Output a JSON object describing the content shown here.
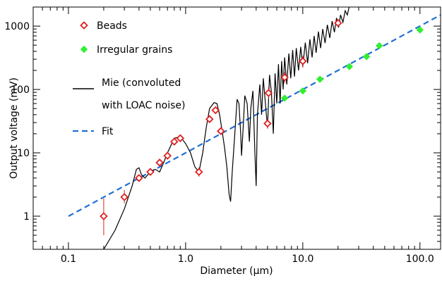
{
  "chart_data": {
    "type": "scatter",
    "title": "",
    "xlabel": "Diameter (μm)",
    "ylabel": "Output voltage (mV)",
    "xscale": "log",
    "yscale": "log",
    "xlim": [
      0.05,
      150
    ],
    "ylim": [
      0.3,
      2000
    ],
    "xticks": [
      {
        "value": 0.1,
        "label": "0.1"
      },
      {
        "value": 1,
        "label": "1.0"
      },
      {
        "value": 10,
        "label": "10.0"
      },
      {
        "value": 100,
        "label": "100.0"
      }
    ],
    "yticks": [
      {
        "value": 1,
        "label": "1"
      },
      {
        "value": 10,
        "label": "10"
      },
      {
        "value": 100,
        "label": "100"
      },
      {
        "value": 1000,
        "label": "1000"
      }
    ],
    "legend_position": "top-left",
    "legend": [
      {
        "label": "Beads",
        "kind": "marker",
        "color": "#e02020"
      },
      {
        "label": "Irregular grains",
        "kind": "marker",
        "color": "#33ee33"
      },
      {
        "label": "Mie (convoluted",
        "label2": "with LOAC noise)",
        "kind": "line",
        "color": "#000000"
      },
      {
        "label": "Fit",
        "kind": "dashed",
        "color": "#1f6fd6"
      }
    ],
    "series": [
      {
        "name": "Beads",
        "marker": "diamond-open",
        "color": "#e02020",
        "points": [
          {
            "x": 0.2,
            "y": 1.0,
            "err": [
              0.5,
              1.9
            ]
          },
          {
            "x": 0.3,
            "y": 2.0,
            "err": [
              1.6,
              2.6
            ]
          },
          {
            "x": 0.4,
            "y": 4.0,
            "err": [
              3.5,
              4.5
            ]
          },
          {
            "x": 0.5,
            "y": 5.0
          },
          {
            "x": 0.6,
            "y": 7.0
          },
          {
            "x": 0.7,
            "y": 9.0
          },
          {
            "x": 0.8,
            "y": 15.0
          },
          {
            "x": 0.9,
            "y": 17.0
          },
          {
            "x": 1.3,
            "y": 5.0,
            "err": [
              4.2,
              5.9
            ]
          },
          {
            "x": 1.6,
            "y": 34.0
          },
          {
            "x": 1.8,
            "y": 47.0
          },
          {
            "x": 2.0,
            "y": 22.0
          },
          {
            "x": 5.0,
            "y": 29.0,
            "err": [
              24,
              35
            ]
          },
          {
            "x": 5.1,
            "y": 88.0,
            "err": [
              70,
              110
            ]
          },
          {
            "x": 7.0,
            "y": 155.0,
            "err": [
              125,
              190
            ]
          },
          {
            "x": 10.0,
            "y": 280.0,
            "err": [
              220,
              340
            ]
          },
          {
            "x": 20.0,
            "y": 1120.0
          }
        ]
      },
      {
        "name": "Irregular grains",
        "marker": "diamond-filled",
        "color": "#33ee33",
        "points": [
          {
            "x": 7.0,
            "y": 73.0
          },
          {
            "x": 10.0,
            "y": 95.0
          },
          {
            "x": 14.0,
            "y": 145.0
          },
          {
            "x": 25.0,
            "y": 230.0
          },
          {
            "x": 35.0,
            "y": 330.0
          },
          {
            "x": 45.0,
            "y": 490.0
          },
          {
            "x": 100.0,
            "y": 870.0
          }
        ]
      },
      {
        "name": "Fit",
        "kind": "line",
        "style": "dashed",
        "color": "#1f6fd6",
        "points": [
          {
            "x": 0.1,
            "y": 1.0
          },
          {
            "x": 150,
            "y": 1500
          }
        ]
      },
      {
        "name": "Mie (convoluted with LOAC noise)",
        "kind": "line",
        "style": "solid",
        "color": "#000000",
        "points": [
          {
            "x": 0.2,
            "y": 0.3
          },
          {
            "x": 0.25,
            "y": 0.6
          },
          {
            "x": 0.3,
            "y": 1.3
          },
          {
            "x": 0.35,
            "y": 3.0
          },
          {
            "x": 0.38,
            "y": 5.5
          },
          {
            "x": 0.4,
            "y": 5.8
          },
          {
            "x": 0.42,
            "y": 4.5
          },
          {
            "x": 0.45,
            "y": 4.0
          },
          {
            "x": 0.5,
            "y": 5.0
          },
          {
            "x": 0.55,
            "y": 5.5
          },
          {
            "x": 0.6,
            "y": 5.0
          },
          {
            "x": 0.65,
            "y": 7.0
          },
          {
            "x": 0.7,
            "y": 10.0
          },
          {
            "x": 0.8,
            "y": 17.0
          },
          {
            "x": 0.9,
            "y": 18.0
          },
          {
            "x": 1.0,
            "y": 14.0
          },
          {
            "x": 1.1,
            "y": 10.0
          },
          {
            "x": 1.2,
            "y": 6.0
          },
          {
            "x": 1.3,
            "y": 5.0
          },
          {
            "x": 1.4,
            "y": 10.0
          },
          {
            "x": 1.5,
            "y": 25.0
          },
          {
            "x": 1.6,
            "y": 50.0
          },
          {
            "x": 1.75,
            "y": 62.0
          },
          {
            "x": 1.85,
            "y": 60.0
          },
          {
            "x": 1.95,
            "y": 40.0
          },
          {
            "x": 2.05,
            "y": 22.0
          },
          {
            "x": 2.15,
            "y": 12.0
          },
          {
            "x": 2.25,
            "y": 6.0
          },
          {
            "x": 2.35,
            "y": 2.2
          },
          {
            "x": 2.42,
            "y": 1.7
          },
          {
            "x": 2.5,
            "y": 5.0
          },
          {
            "x": 2.6,
            "y": 15.0
          },
          {
            "x": 2.75,
            "y": 70.0
          },
          {
            "x": 2.85,
            "y": 60.0
          },
          {
            "x": 2.95,
            "y": 20.0
          },
          {
            "x": 3.0,
            "y": 9.0
          },
          {
            "x": 3.1,
            "y": 25.0
          },
          {
            "x": 3.2,
            "y": 80.0
          },
          {
            "x": 3.35,
            "y": 60.0
          },
          {
            "x": 3.5,
            "y": 15.0
          },
          {
            "x": 3.6,
            "y": 50.0
          },
          {
            "x": 3.75,
            "y": 95.0
          },
          {
            "x": 3.9,
            "y": 10.0
          },
          {
            "x": 4.0,
            "y": 3.0
          },
          {
            "x": 4.1,
            "y": 40.0
          },
          {
            "x": 4.3,
            "y": 120.0
          },
          {
            "x": 4.45,
            "y": 40.0
          },
          {
            "x": 4.6,
            "y": 150.0
          },
          {
            "x": 4.8,
            "y": 60.0
          },
          {
            "x": 5.0,
            "y": 25.0
          },
          {
            "x": 5.2,
            "y": 170.0
          },
          {
            "x": 5.4,
            "y": 90.0
          },
          {
            "x": 5.6,
            "y": 20.0
          },
          {
            "x": 5.8,
            "y": 180.0
          },
          {
            "x": 6.0,
            "y": 60.0
          },
          {
            "x": 6.2,
            "y": 250.0
          },
          {
            "x": 6.4,
            "y": 60.0
          },
          {
            "x": 6.6,
            "y": 280.0
          },
          {
            "x": 6.8,
            "y": 100.0
          },
          {
            "x": 7.0,
            "y": 320.0
          },
          {
            "x": 7.3,
            "y": 120.0
          },
          {
            "x": 7.6,
            "y": 370.0
          },
          {
            "x": 7.9,
            "y": 150.0
          },
          {
            "x": 8.2,
            "y": 420.0
          },
          {
            "x": 8.5,
            "y": 160.0
          },
          {
            "x": 8.8,
            "y": 450.0
          },
          {
            "x": 9.2,
            "y": 200.0
          },
          {
            "x": 9.6,
            "y": 470.0
          },
          {
            "x": 10.0,
            "y": 230.0
          },
          {
            "x": 10.5,
            "y": 550.0
          },
          {
            "x": 11.0,
            "y": 260.0
          },
          {
            "x": 11.5,
            "y": 620.0
          },
          {
            "x": 12.0,
            "y": 320.0
          },
          {
            "x": 12.5,
            "y": 700.0
          },
          {
            "x": 13.0,
            "y": 380.0
          },
          {
            "x": 13.6,
            "y": 820.0
          },
          {
            "x": 14.2,
            "y": 450.0
          },
          {
            "x": 14.8,
            "y": 900.0
          },
          {
            "x": 15.5,
            "y": 540.0
          },
          {
            "x": 16.2,
            "y": 1050.0
          },
          {
            "x": 17.0,
            "y": 650.0
          },
          {
            "x": 17.8,
            "y": 1200.0
          },
          {
            "x": 18.6,
            "y": 800.0
          },
          {
            "x": 19.4,
            "y": 1350.0
          },
          {
            "x": 20.2,
            "y": 950.0
          },
          {
            "x": 21.0,
            "y": 1500.0
          },
          {
            "x": 22.0,
            "y": 1150.0
          },
          {
            "x": 23.0,
            "y": 1750.0
          },
          {
            "x": 24.0,
            "y": 1500.0
          },
          {
            "x": 25.0,
            "y": 2100.0
          }
        ]
      }
    ]
  }
}
